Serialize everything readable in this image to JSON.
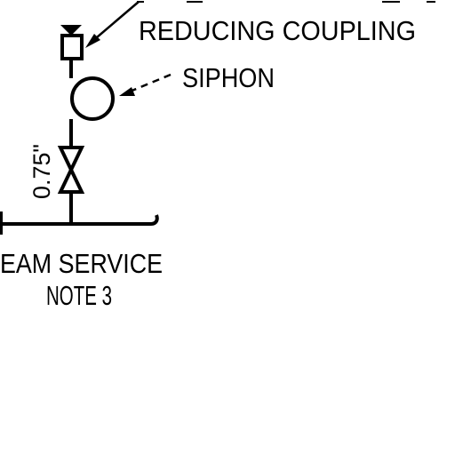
{
  "labels": {
    "reducing_coupling": "REDUCING COUPLING",
    "siphon": "SIPHON",
    "pipe_size": "0.75\"",
    "service_line1": "EAM SERVICE",
    "service_line2": "NOTE 3"
  },
  "colors": {
    "ink": "#000000",
    "background": "#ffffff"
  }
}
